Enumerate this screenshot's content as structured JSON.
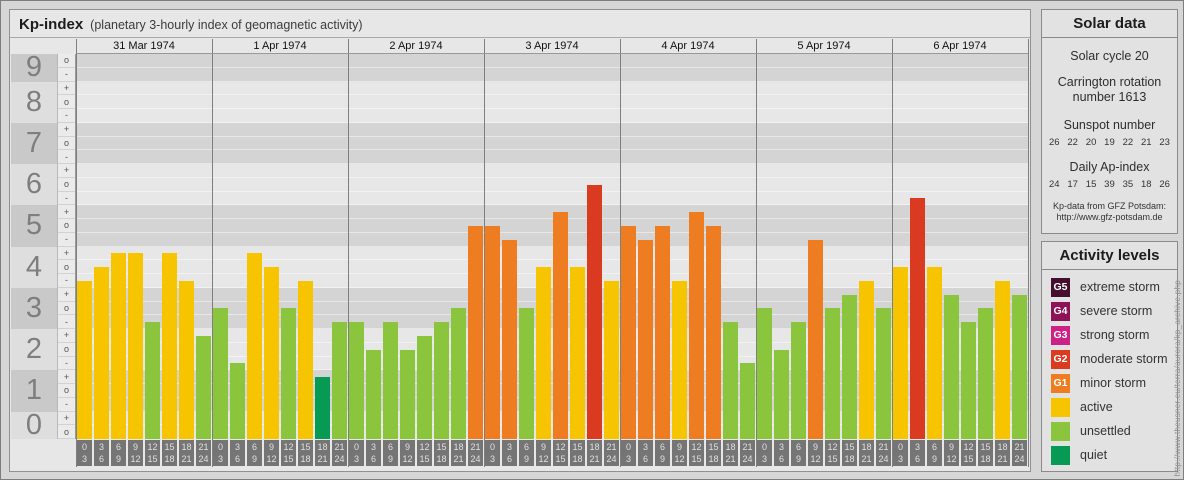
{
  "title": {
    "main": "Kp-index",
    "subtitle": "(planetary 3-hourly index of geomagnetic activity)"
  },
  "watermark": "http://www.theusner.eu/terra/aurora/kp_archive.php",
  "chart_data": {
    "type": "bar",
    "title": "Kp-index (planetary 3-hourly index of geomagnetic activity)",
    "ylabel": "Kp",
    "ylim": [
      0,
      9
    ],
    "y_axis_numerals": [
      9,
      8,
      7,
      6,
      5,
      4,
      3,
      2,
      1,
      0
    ],
    "y_axis_sublevel_marks": [
      "+",
      "o",
      "-"
    ],
    "grid": "alternating-bands",
    "legend_position": "right-panel",
    "hour_intervals": [
      [
        "0",
        "3"
      ],
      [
        "3",
        "6"
      ],
      [
        "6",
        "9"
      ],
      [
        "9",
        "12"
      ],
      [
        "12",
        "15"
      ],
      [
        "15",
        "18"
      ],
      [
        "18",
        "21"
      ],
      [
        "21",
        "24"
      ]
    ],
    "days": [
      {
        "date": "31 Mar 1974",
        "values": [
          "4-",
          "4o",
          "4+",
          "4+",
          "3-",
          "4+",
          "4-",
          "2+"
        ]
      },
      {
        "date": "1 Apr 1974",
        "values": [
          "3o",
          "2-",
          "4+",
          "4o",
          "3o",
          "4-",
          "1+",
          "3-"
        ]
      },
      {
        "date": "2 Apr 1974",
        "values": [
          "3-",
          "2o",
          "3-",
          "2o",
          "2+",
          "3-",
          "3o",
          "5o"
        ]
      },
      {
        "date": "3 Apr 1974",
        "values": [
          "5o",
          "5-",
          "3o",
          "4o",
          "5+",
          "4o",
          "6o",
          "4-"
        ]
      },
      {
        "date": "4 Apr 1974",
        "values": [
          "5o",
          "5-",
          "5o",
          "4-",
          "5+",
          "5o",
          "3-",
          "2-"
        ]
      },
      {
        "date": "5 Apr 1974",
        "values": [
          "3o",
          "2o",
          "3-",
          "5-",
          "3o",
          "3+",
          "4-",
          "3o"
        ]
      },
      {
        "date": "6 Apr 1974",
        "values": [
          "4o",
          "6-",
          "4o",
          "3+",
          "3-",
          "3o",
          "4-",
          "3+"
        ]
      }
    ],
    "kp_color_thresholds": [
      {
        "max_thirds": 4,
        "level_index": 7
      },
      {
        "max_thirds": 10,
        "level_index": 6
      },
      {
        "max_thirds": 13,
        "level_index": 5
      },
      {
        "max_thirds": 16,
        "level_index": 4
      },
      {
        "max_thirds": 19,
        "level_index": 3
      },
      {
        "max_thirds": 22,
        "level_index": 2
      },
      {
        "max_thirds": 25,
        "level_index": 1
      },
      {
        "max_thirds": 28,
        "level_index": 0
      }
    ]
  },
  "solar_data": {
    "title": "Solar data",
    "solar_cycle": "Solar cycle 20",
    "carrington": "Carrington rotation number 1613",
    "sunspot_label": "Sunspot number",
    "sunspot_values": [
      26,
      22,
      20,
      19,
      22,
      21,
      23
    ],
    "ap_label": "Daily Ap-index",
    "ap_values": [
      24,
      17,
      15,
      39,
      35,
      18,
      26
    ],
    "source_line1": "Kp-data from GFZ Potsdam:",
    "source_line2": "http://www.gfz-potsdam.de"
  },
  "activity_levels": {
    "title": "Activity levels",
    "items": [
      {
        "badge": "G5",
        "label": "extreme storm",
        "color": "#450d2e"
      },
      {
        "badge": "G4",
        "label": "severe storm",
        "color": "#8e1356"
      },
      {
        "badge": "G3",
        "label": "strong storm",
        "color": "#cc2185"
      },
      {
        "badge": "G2",
        "label": "moderate storm",
        "color": "#d93a20"
      },
      {
        "badge": "G1",
        "label": "minor storm",
        "color": "#ee7c20"
      },
      {
        "badge": "",
        "label": "active",
        "color": "#f7c500"
      },
      {
        "badge": "",
        "label": "unsettled",
        "color": "#8bc53d"
      },
      {
        "badge": "",
        "label": "quiet",
        "color": "#079a55"
      }
    ]
  }
}
